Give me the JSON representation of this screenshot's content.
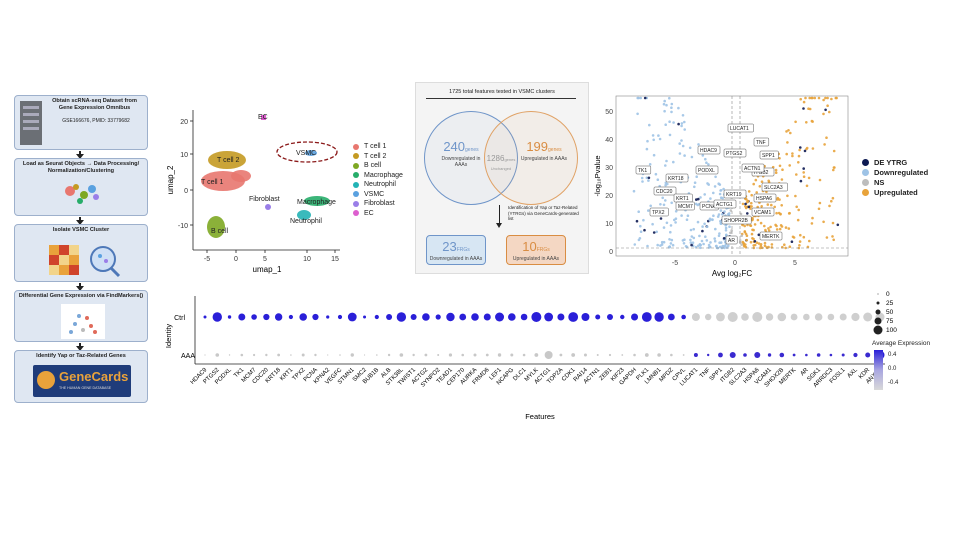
{
  "workflow": {
    "steps": [
      {
        "title": "Obtain scRNA-seq Dataset from Gene Expression Omnibus",
        "sub": "GSE166676, PMID: 33779682"
      },
      {
        "title": "Load as Seurat Objects → Data Processing/ Normalization/Clustering",
        "sub": ""
      },
      {
        "title": "Isolate VSMC Cluster",
        "sub": ""
      },
      {
        "title": "Differential Gene Expression via FindMarkers()",
        "sub": ""
      },
      {
        "title": "Identify Yap or Taz-Related Genes",
        "sub": ""
      }
    ],
    "genecards_logo": "GeneCards",
    "genecards_tagline": "THE HUMAN GENE DATABASE"
  },
  "umap": {
    "xlabel": "umap_1",
    "ylabel": "umap_2",
    "xticks": [
      "-5",
      "0",
      "5",
      "10",
      "15"
    ],
    "yticks": [
      "20",
      "10",
      "0",
      "-10"
    ],
    "cluster_labels": [
      "T cell 2",
      "T cell 1",
      "B cell",
      "Fibroblast",
      "EC",
      "VSMC",
      "Macrophage",
      "Neutrophil"
    ],
    "legend": [
      {
        "name": "T cell 1",
        "color": "#e8776f"
      },
      {
        "name": "T cell 2",
        "color": "#c49a22"
      },
      {
        "name": "B cell",
        "color": "#7ea823"
      },
      {
        "name": "Macrophage",
        "color": "#27ad6a"
      },
      {
        "name": "Neutrophil",
        "color": "#23b3b5"
      },
      {
        "name": "VSMC",
        "color": "#5aa1e0"
      },
      {
        "name": "Fibroblast",
        "color": "#9a7ee8"
      },
      {
        "name": "EC",
        "color": "#dd5fcf"
      }
    ]
  },
  "venn": {
    "header": "1725 total features tested in VSMC clusters",
    "left_num": "240",
    "left_unit": "genes",
    "left_desc": "Downregulated in AAAs",
    "mid_num": "1286",
    "mid_unit": "genes",
    "mid_desc": "Unchanged",
    "right_num": "199",
    "right_unit": "genes",
    "right_desc": "Upregulated in AAAs",
    "arrow_text": "Identification of Yap or Taz-Related (YTRGs) via GeneCards-generated list",
    "frg_left_num": "23",
    "frg_left_unit": "FRGs",
    "frg_left_desc": "Downregulated in AAAs",
    "frg_right_num": "10",
    "frg_right_unit": "FRGs",
    "frg_right_desc": "Upregulated in AAAs"
  },
  "volcano": {
    "xlabel": "Avg log₂FC",
    "ylabel": "-log₁₀Pvalue",
    "xticks": [
      "-5",
      "0",
      "5"
    ],
    "yticks": [
      "0",
      "10",
      "20",
      "30",
      "40",
      "50"
    ],
    "down_labels": [
      "HDAC9",
      "PODXL",
      "TK1",
      "CDC20",
      "KRT1",
      "KRT18",
      "PCNA",
      "TPX2",
      "MCM7",
      "ACTG1"
    ],
    "up_labels": [
      "LUCAT1",
      "TNF",
      "SPP1",
      "PTGS2",
      "ITGB2",
      "SLC2A3",
      "KRT19",
      "HSPA6",
      "VCAM1",
      "SHOPR2B",
      "MERTK",
      "AR",
      "ACTN1"
    ],
    "legend": [
      {
        "name": "DE YTRG",
        "color": "#0d1a52"
      },
      {
        "name": "Downregulated",
        "color": "#9ec3e6"
      },
      {
        "name": "NS",
        "color": "#bdbdbd"
      },
      {
        "name": "Upregulated",
        "color": "#e8a33b"
      }
    ]
  },
  "dotplot": {
    "xlabel": "Features",
    "ylabel": "Identity",
    "rows": [
      "Ctrl",
      "AAA"
    ],
    "genes": [
      "HDAC9",
      "PTGS2",
      "PODXL",
      "TK1",
      "MCM7",
      "CDC20",
      "KRT18",
      "KRT1",
      "TPX2",
      "PCNA",
      "KPNA2",
      "VEGFC",
      "STMN1",
      "SMC2",
      "BUB1B",
      "ALB",
      "STK38L",
      "TWIST1",
      "ACTG2",
      "SYNPO2",
      "TEAD1",
      "CEP170",
      "AURKA",
      "FRMD6",
      "LEF1",
      "NCAPG",
      "DLC1",
      "MYLK",
      "ACTG1",
      "TOP2A",
      "CDK1",
      "RAI14",
      "ACTN1",
      "ZEB1",
      "KIF23",
      "GAPDH",
      "PLK1",
      "LMNB1",
      "MPDZ",
      "CPVL",
      "LUCAT1",
      "TNF",
      "SPP1",
      "ITGB2",
      "SLC2A3",
      "HSPA6",
      "VCAM1",
      "SHOX2B",
      "MERTK",
      "AR",
      "SGK1",
      "ARRDC3",
      "FOSL1",
      "AXL",
      "KDR",
      "ANXA1"
    ],
    "size_legend_title": "",
    "size_legend": [
      "0",
      "25",
      "50",
      "75",
      "100"
    ],
    "color_legend_title": "Average Expression",
    "color_legend_ticks": [
      "0.4",
      "0.0",
      "-0.4"
    ]
  }
}
